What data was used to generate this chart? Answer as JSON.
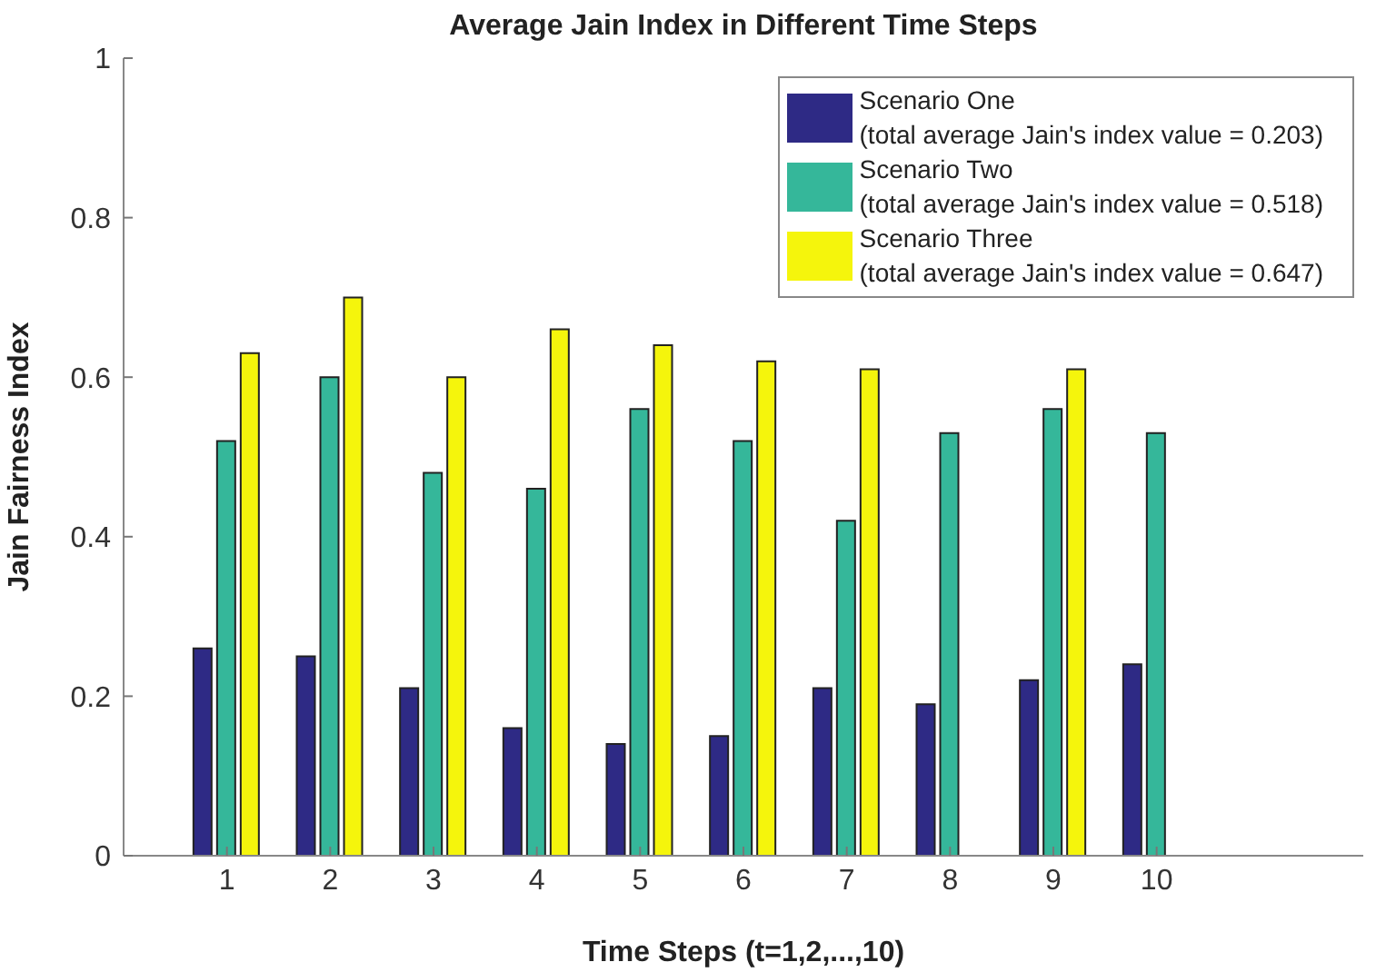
{
  "chart_data": {
    "type": "bar",
    "title": "Average Jain Index in Different Time Steps",
    "xlabel": "Time Steps (t=1,2,...,10)",
    "ylabel": "Jain Fairness Index",
    "x": [
      1,
      2,
      3,
      4,
      5,
      6,
      7,
      8,
      9,
      10
    ],
    "series": [
      {
        "name": "Scenario One (total average Jain's index value = 0.203)",
        "color": "#2e2a85",
        "values": [
          0.26,
          0.25,
          0.21,
          0.16,
          0.14,
          0.15,
          0.21,
          0.19,
          0.22,
          0.24
        ]
      },
      {
        "name": "Scenario Two (total average Jain's index value = 0.518)",
        "color": "#35b79a",
        "values": [
          0.52,
          0.6,
          0.48,
          0.46,
          0.56,
          0.52,
          0.42,
          0.53,
          0.56,
          0.53
        ]
      },
      {
        "name": "Scenario Three (total average Jain's index value = 0.647)",
        "color": "#f5f50c",
        "values": [
          0.63,
          0.7,
          0.6,
          0.66,
          0.64,
          0.62,
          0.61,
          null,
          0.61,
          null
        ]
      }
    ],
    "xlim": [
      0,
      12
    ],
    "xticks": [
      1,
      2,
      3,
      4,
      5,
      6,
      7,
      8,
      9,
      10
    ],
    "ylim": [
      0,
      1
    ],
    "yticks": [
      0,
      0.2,
      0.4,
      0.6,
      0.8,
      1
    ],
    "legend": "top right",
    "grid": false
  }
}
